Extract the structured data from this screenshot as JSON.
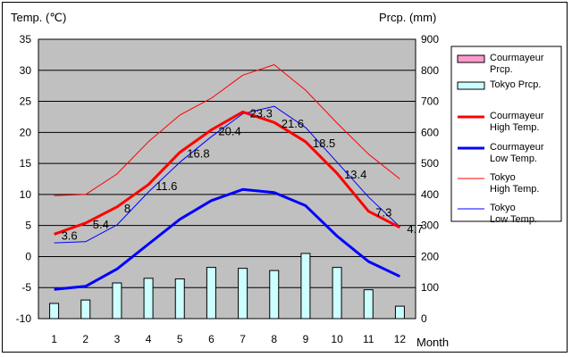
{
  "chart_data": {
    "type": "line",
    "left_axis_label": "Temp. (℃)",
    "right_axis_label": "Prcp. (mm)",
    "xlabel": "Month",
    "categories": [
      "1",
      "2",
      "3",
      "4",
      "5",
      "6",
      "7",
      "8",
      "9",
      "10",
      "11",
      "12"
    ],
    "left_ylim": [
      -10,
      35
    ],
    "left_ticks": [
      "35",
      "30",
      "25",
      "20",
      "15",
      "10",
      "5",
      "0",
      "-5",
      "-10"
    ],
    "right_ylim": [
      0,
      900
    ],
    "right_ticks": [
      "900",
      "800",
      "700",
      "600",
      "500",
      "400",
      "300",
      "200",
      "100",
      "0"
    ],
    "grid": true,
    "plot_background": "#c0c0c0",
    "legend_position": "right",
    "series": [
      {
        "key": "cour_prcp",
        "name": "Courmayeur Prcp.",
        "type": "bar",
        "axis": "right",
        "color": "#ff99cc",
        "values": [
          null,
          null,
          null,
          null,
          null,
          null,
          null,
          null,
          null,
          null,
          null,
          null
        ]
      },
      {
        "key": "tokyo_prcp",
        "name": "Tokyo Prcp.",
        "type": "bar",
        "axis": "right",
        "color": "#ccffff",
        "values": [
          49,
          60,
          115,
          130,
          128,
          165,
          162,
          155,
          210,
          165,
          93,
          40
        ]
      },
      {
        "key": "cour_high",
        "name": "Courmayeur High Temp.",
        "type": "line",
        "axis": "left",
        "color": "#ff0000",
        "width": 3,
        "values": [
          3.6,
          5.4,
          8,
          11.6,
          16.8,
          20.4,
          23.3,
          21.6,
          18.5,
          13.4,
          7.3,
          4.7
        ],
        "labels": [
          "3.6",
          "5.4",
          "8",
          "11.6",
          "16.8",
          "20.4",
          "23.3",
          "21.6",
          "18.5",
          "13.4",
          "7.3",
          "4.7"
        ]
      },
      {
        "key": "cour_low",
        "name": "Courmayeur Low Temp.",
        "type": "line",
        "axis": "left",
        "color": "#0000ff",
        "width": 3,
        "values": [
          -5.3,
          -4.8,
          -2,
          2,
          6,
          9,
          10.8,
          10.3,
          8.2,
          3.3,
          -0.8,
          -3.2
        ]
      },
      {
        "key": "tokyo_high",
        "name": "Tokyo High Temp.",
        "type": "line",
        "axis": "left",
        "color": "#ff0000",
        "width": 1,
        "values": [
          9.8,
          10,
          13.3,
          18.5,
          22.8,
          25.5,
          29.2,
          30.9,
          26.8,
          21.5,
          16.5,
          12.5
        ]
      },
      {
        "key": "tokyo_low",
        "name": "Tokyo Low Temp.",
        "type": "line",
        "axis": "left",
        "color": "#0000ff",
        "width": 1,
        "values": [
          2.2,
          2.4,
          5.1,
          10.4,
          15.2,
          19.3,
          23,
          24.2,
          20.8,
          15.2,
          9.6,
          4.8
        ]
      }
    ]
  }
}
